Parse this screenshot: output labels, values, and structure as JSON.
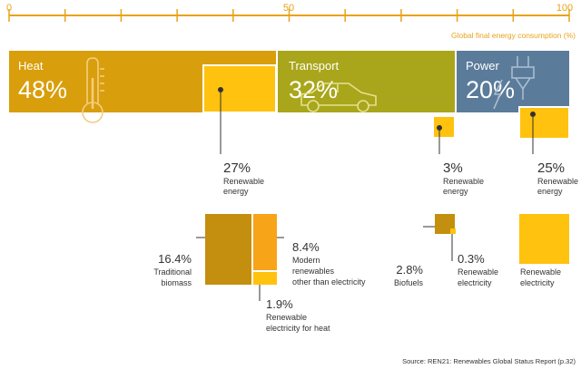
{
  "chart_data": {
    "type": "bar",
    "axis": {
      "ticks": [
        "0",
        "50",
        "100"
      ],
      "xlim": [
        0,
        100
      ],
      "label": "Global final energy consumption (%)"
    },
    "sectors": [
      {
        "name": "Heat",
        "share_label": "48%",
        "share": 48,
        "renewable": 27,
        "renewable_label": "27%",
        "renewable_caption": [
          "Renewable",
          "energy"
        ],
        "color": "#D99E0B",
        "icon": "thermometer-icon"
      },
      {
        "name": "Transport",
        "share_label": "32%",
        "share": 32,
        "renewable": 3,
        "renewable_label": "3%",
        "renewable_caption": [
          "Renewable",
          "energy"
        ],
        "color": "#A9A61B",
        "icon": "car-icon"
      },
      {
        "name": "Power",
        "share_label": "20%",
        "share": 20,
        "renewable": 25,
        "renewable_label": "25%",
        "renewable_caption": [
          "Renewable",
          "energy"
        ],
        "color": "#5B7B9A",
        "icon": "electric-plug-icon"
      }
    ],
    "breakdowns": {
      "heat": [
        {
          "value": 16.4,
          "label": "16.4%",
          "caption": [
            "Traditional",
            "biomass"
          ],
          "color": "#C48F0E"
        },
        {
          "value": 8.4,
          "label": "8.4%",
          "caption": [
            "Modern",
            "renewables",
            "other than electricity"
          ],
          "color": "#F7A418"
        },
        {
          "value": 1.9,
          "label": "1.9%",
          "caption": [
            "Renewable",
            "electricity for heat"
          ],
          "color": "#FFC20E"
        }
      ],
      "transport": [
        {
          "value": 2.8,
          "label": "2.8%",
          "caption": [
            "Biofuels"
          ],
          "color": "#C48F0E"
        },
        {
          "value": 0.3,
          "label": "0.3%",
          "caption": [
            "Renewable",
            "electricity"
          ],
          "color": "#FFC20E"
        }
      ],
      "power": [
        {
          "value": 25,
          "label": "",
          "caption": [
            "Renewable",
            "electricity"
          ],
          "color": "#FFC20E"
        }
      ]
    },
    "colors": {
      "axis": "#E8A317",
      "renewable": "#FFC20E",
      "text": "#333333",
      "source": "#333333"
    },
    "source": "Source: REN21: Renewables Global Status Report (p.32)"
  }
}
